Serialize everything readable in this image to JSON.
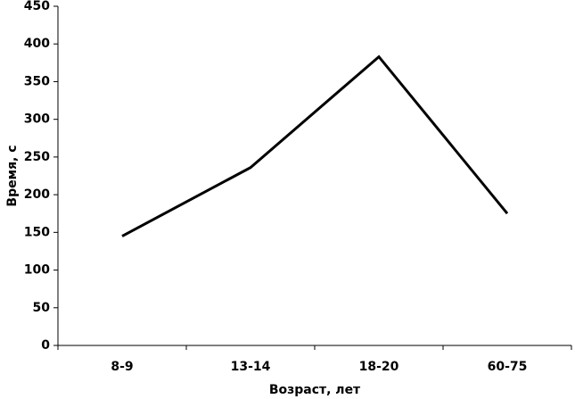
{
  "chart_data": {
    "type": "line",
    "x_label": "Возраст, лет",
    "y_label": "Время, с",
    "categories": [
      "8-9",
      "13-14",
      "18-20",
      "60-75"
    ],
    "series": [
      {
        "name": "Время",
        "color": "#000000",
        "values": [
          145,
          236,
          383,
          175
        ]
      }
    ],
    "ylim": [
      0,
      450
    ],
    "yticks": [
      0,
      50,
      100,
      150,
      200,
      250,
      300,
      350,
      400,
      450
    ],
    "grid": false
  }
}
